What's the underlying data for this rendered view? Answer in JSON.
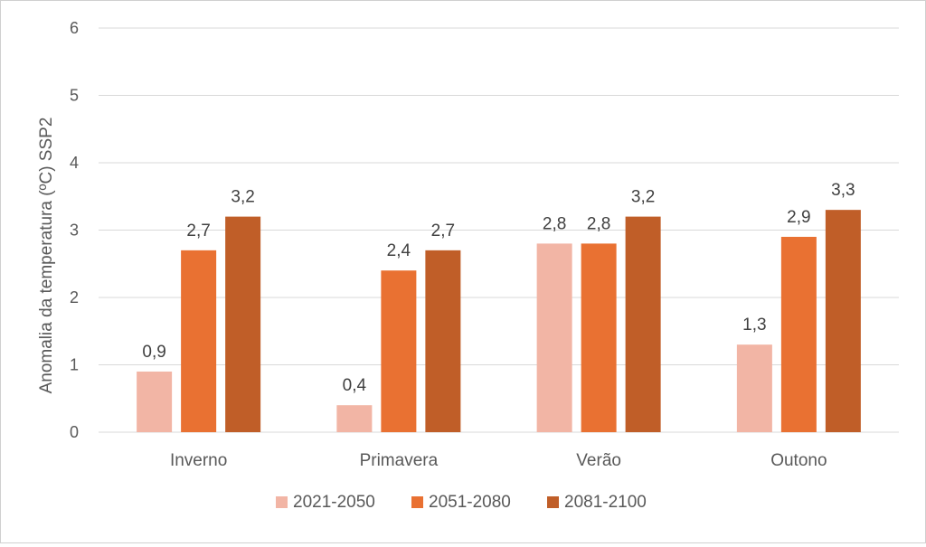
{
  "chart_data": {
    "type": "bar",
    "title": "",
    "xlabel": "",
    "ylabel": "Anomalia da temperatura (ºC) SSP2",
    "ylim": [
      0,
      6
    ],
    "yticks": [
      "0",
      "1",
      "2",
      "3",
      "4",
      "5",
      "6"
    ],
    "grid": true,
    "legend_position": "bottom",
    "categories": [
      "Inverno",
      "Primavera",
      "Verão",
      "Outono"
    ],
    "series": [
      {
        "name": "2021-2050",
        "color": "#f2b5a5",
        "values": [
          0.9,
          0.4,
          2.8,
          1.3
        ],
        "labels": [
          "0,9",
          "0,4",
          "2,8",
          "1,3"
        ]
      },
      {
        "name": "2051-2080",
        "color": "#e97132",
        "values": [
          2.7,
          2.4,
          2.8,
          2.9
        ],
        "labels": [
          "2,7",
          "2,4",
          "2,8",
          "2,9"
        ]
      },
      {
        "name": "2081-2100",
        "color": "#c05e28",
        "values": [
          3.2,
          2.7,
          3.2,
          3.3
        ],
        "labels": [
          "3,2",
          "2,7",
          "3,2",
          "3,3"
        ]
      }
    ]
  }
}
